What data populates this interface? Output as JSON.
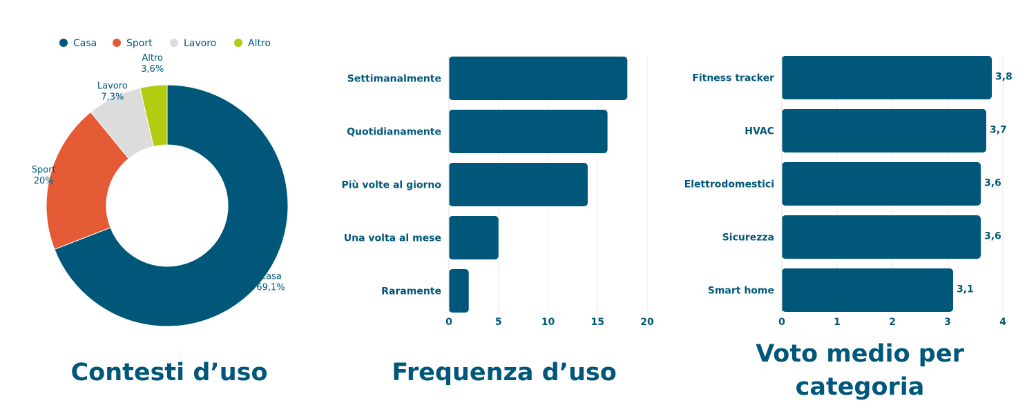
{
  "charts": {
    "contesti": {
      "title": "Contesti d’uso",
      "chart_data": {
        "type": "pie",
        "title": "Contesti d’uso",
        "legend_position": "top",
        "labels": [
          "Casa",
          "Sport",
          "Lavoro",
          "Altro"
        ],
        "values": [
          69.1,
          20,
          7.3,
          3.6
        ],
        "display_values": [
          "69,1%",
          "20%",
          "7,3%",
          "3,6%"
        ],
        "colors": [
          "#00577a",
          "#e45a35",
          "#dcdcdc",
          "#b3cc12"
        ]
      }
    },
    "frequenza": {
      "title": "Frequenza d’uso",
      "chart_data": {
        "type": "bar",
        "orientation": "horizontal",
        "title": "Frequenza d’uso",
        "categories": [
          "Settimanalmente",
          "Quotidianamente",
          "Più volte al giorno",
          "Una volta al mese",
          "Raramente"
        ],
        "values": [
          18,
          16,
          14,
          5,
          2
        ],
        "xlim": [
          0,
          20
        ],
        "ticks": [
          "0",
          "5",
          "10",
          "15",
          "20"
        ],
        "grid": true,
        "color": "#00577a"
      }
    },
    "voto": {
      "title_line1": "Voto medio per",
      "title_line2": "categoria",
      "chart_data": {
        "type": "bar",
        "orientation": "horizontal",
        "title": "Voto medio per categoria",
        "categories": [
          "Fitness tracker",
          "HVAC",
          "Elettrodomestici",
          "Sicurezza",
          "Smart home"
        ],
        "values": [
          3.8,
          3.7,
          3.6,
          3.6,
          3.1
        ],
        "value_labels": [
          "3,8",
          "3,7",
          "3,6",
          "3,6",
          "3,1"
        ],
        "xlim": [
          0,
          4
        ],
        "ticks": [
          "0",
          "1",
          "2",
          "3",
          "4"
        ],
        "grid": true,
        "color": "#00577a"
      }
    }
  }
}
